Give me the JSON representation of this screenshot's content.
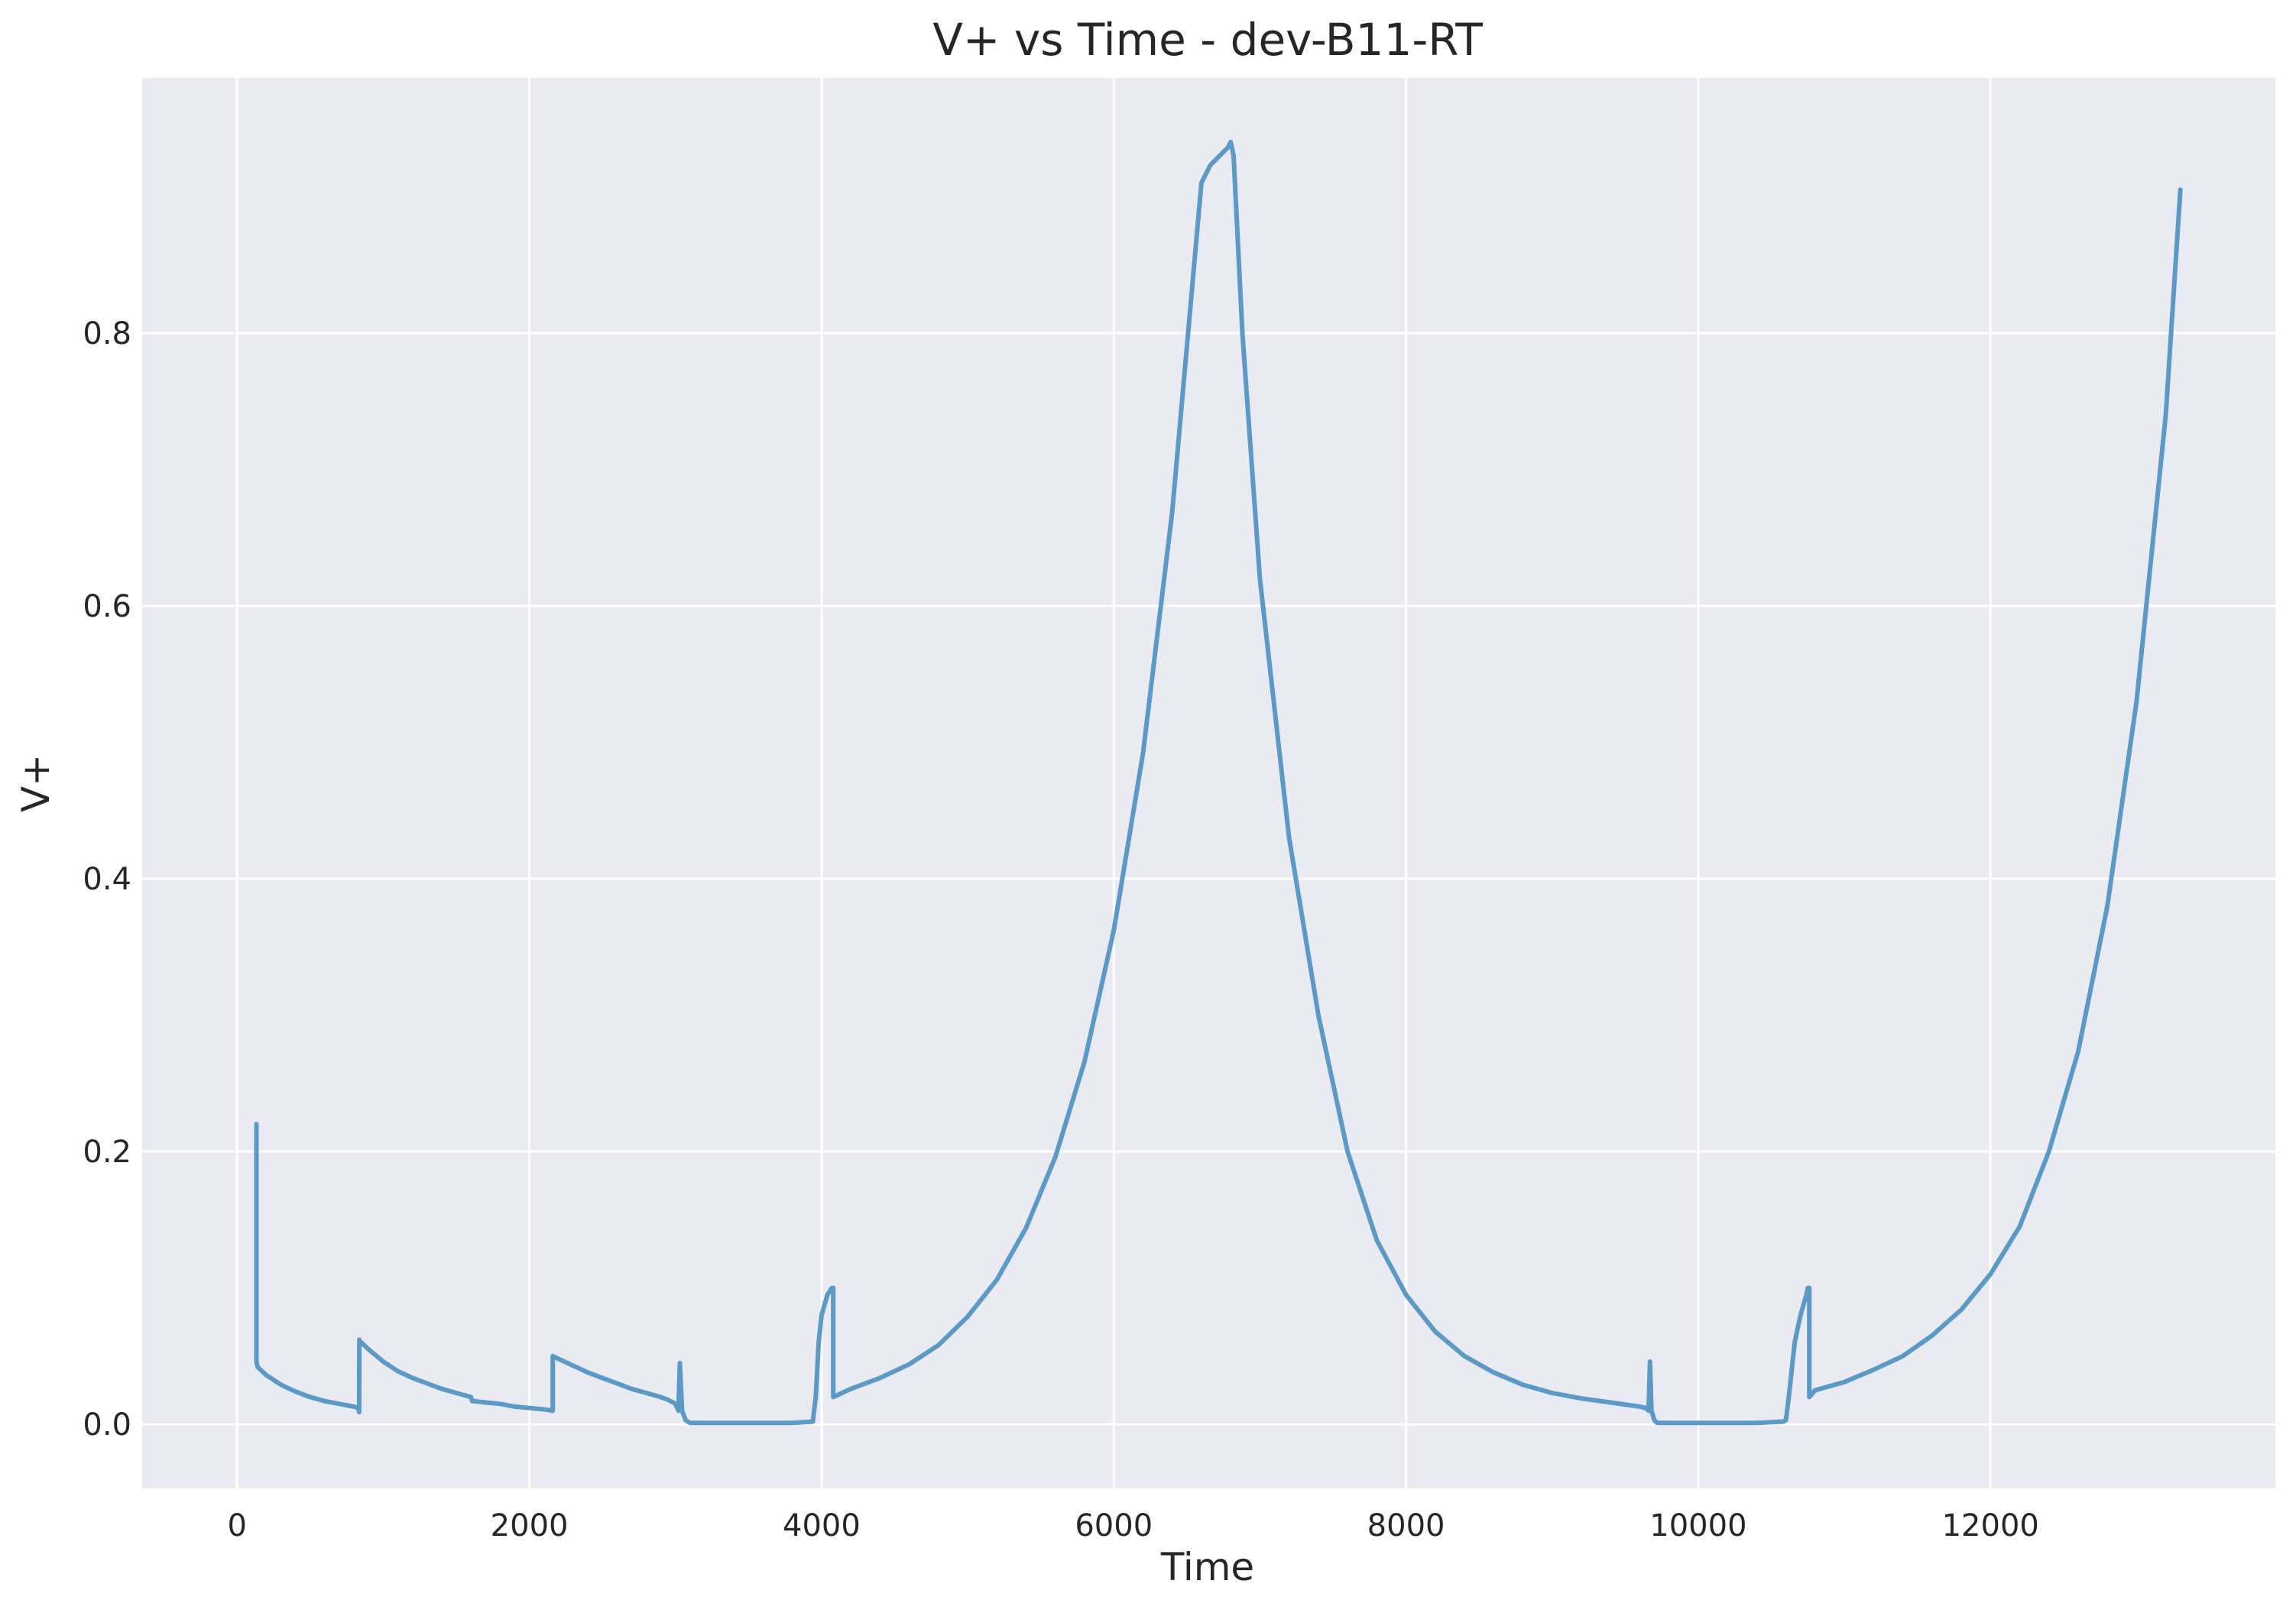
{
  "chart_data": {
    "type": "line",
    "title": "V+ vs Time - dev-B11-RT",
    "xlabel": "Time",
    "ylabel": "V+",
    "xlim": [
      -650,
      13950
    ],
    "ylim": [
      -0.047,
      0.987
    ],
    "xticks": [
      0,
      2000,
      4000,
      6000,
      8000,
      10000,
      12000
    ],
    "xtick_labels": [
      "0",
      "2000",
      "4000",
      "6000",
      "8000",
      "10000",
      "12000"
    ],
    "yticks": [
      0.0,
      0.2,
      0.4,
      0.6,
      0.8
    ],
    "ytick_labels": [
      "0.0",
      "0.2",
      "0.4",
      "0.6",
      "0.8"
    ],
    "grid": true,
    "legend": "none",
    "colors": {
      "background": "#eaeaf2",
      "grid": "#ffffff",
      "line": "#5b9ac6"
    },
    "series": [
      {
        "x": [
          132,
          132,
          140,
          200,
          300,
          400,
          500,
          600,
          700,
          800,
          830,
          835,
          836,
          840,
          900,
          1000,
          1100,
          1200,
          1300,
          1400,
          1500,
          1600,
          1610,
          1620,
          1700,
          1800,
          1900,
          2000,
          2100,
          2160,
          2160,
          2200,
          2300,
          2400,
          2500,
          2600,
          2700,
          2800,
          2900,
          2950,
          3000,
          3020,
          3030,
          3045,
          3070,
          3100,
          3200,
          3400,
          3600,
          3800,
          3940,
          3960,
          3980,
          4000,
          4040,
          4070,
          4080,
          4080,
          4200,
          4400,
          4600,
          4800,
          5000,
          5200,
          5400,
          5600,
          5800,
          6000,
          6200,
          6400,
          6600,
          6660,
          6780,
          6800,
          6820,
          6880,
          7000,
          7200,
          7400,
          7600,
          7800,
          8000,
          8200,
          8400,
          8600,
          8800,
          9000,
          9200,
          9400,
          9600,
          9640,
          9660,
          9670,
          9680,
          9700,
          9720,
          9800,
          10000,
          10200,
          10400,
          10580,
          10600,
          10620,
          10660,
          10700,
          10740,
          10750,
          10760,
          10760,
          10800,
          11000,
          11200,
          11400,
          11600,
          11800,
          12000,
          12200,
          12400,
          12600,
          12800,
          13000,
          13200,
          13300
        ],
        "y": [
          0.22,
          0.046,
          0.042,
          0.036,
          0.029,
          0.024,
          0.02,
          0.017,
          0.015,
          0.013,
          0.012,
          0.009,
          0.062,
          0.061,
          0.055,
          0.046,
          0.039,
          0.034,
          0.03,
          0.026,
          0.023,
          0.02,
          0.017,
          0.017,
          0.016,
          0.015,
          0.013,
          0.012,
          0.011,
          0.01,
          0.05,
          0.048,
          0.043,
          0.038,
          0.034,
          0.03,
          0.026,
          0.023,
          0.02,
          0.018,
          0.015,
          0.01,
          0.045,
          0.01,
          0.003,
          0.001,
          0.001,
          0.001,
          0.001,
          0.001,
          0.002,
          0.02,
          0.06,
          0.08,
          0.095,
          0.1,
          0.1,
          0.02,
          0.026,
          0.034,
          0.044,
          0.058,
          0.079,
          0.106,
          0.144,
          0.196,
          0.266,
          0.362,
          0.492,
          0.669,
          0.91,
          0.923,
          0.936,
          0.94,
          0.93,
          0.8,
          0.62,
          0.43,
          0.3,
          0.2,
          0.135,
          0.095,
          0.068,
          0.05,
          0.038,
          0.029,
          0.023,
          0.019,
          0.016,
          0.013,
          0.012,
          0.01,
          0.046,
          0.01,
          0.003,
          0.001,
          0.001,
          0.001,
          0.001,
          0.001,
          0.002,
          0.003,
          0.02,
          0.06,
          0.08,
          0.095,
          0.1,
          0.1,
          0.02,
          0.025,
          0.031,
          0.04,
          0.05,
          0.065,
          0.084,
          0.11,
          0.145,
          0.2,
          0.273,
          0.38,
          0.53,
          0.74,
          0.905
        ]
      }
    ]
  }
}
